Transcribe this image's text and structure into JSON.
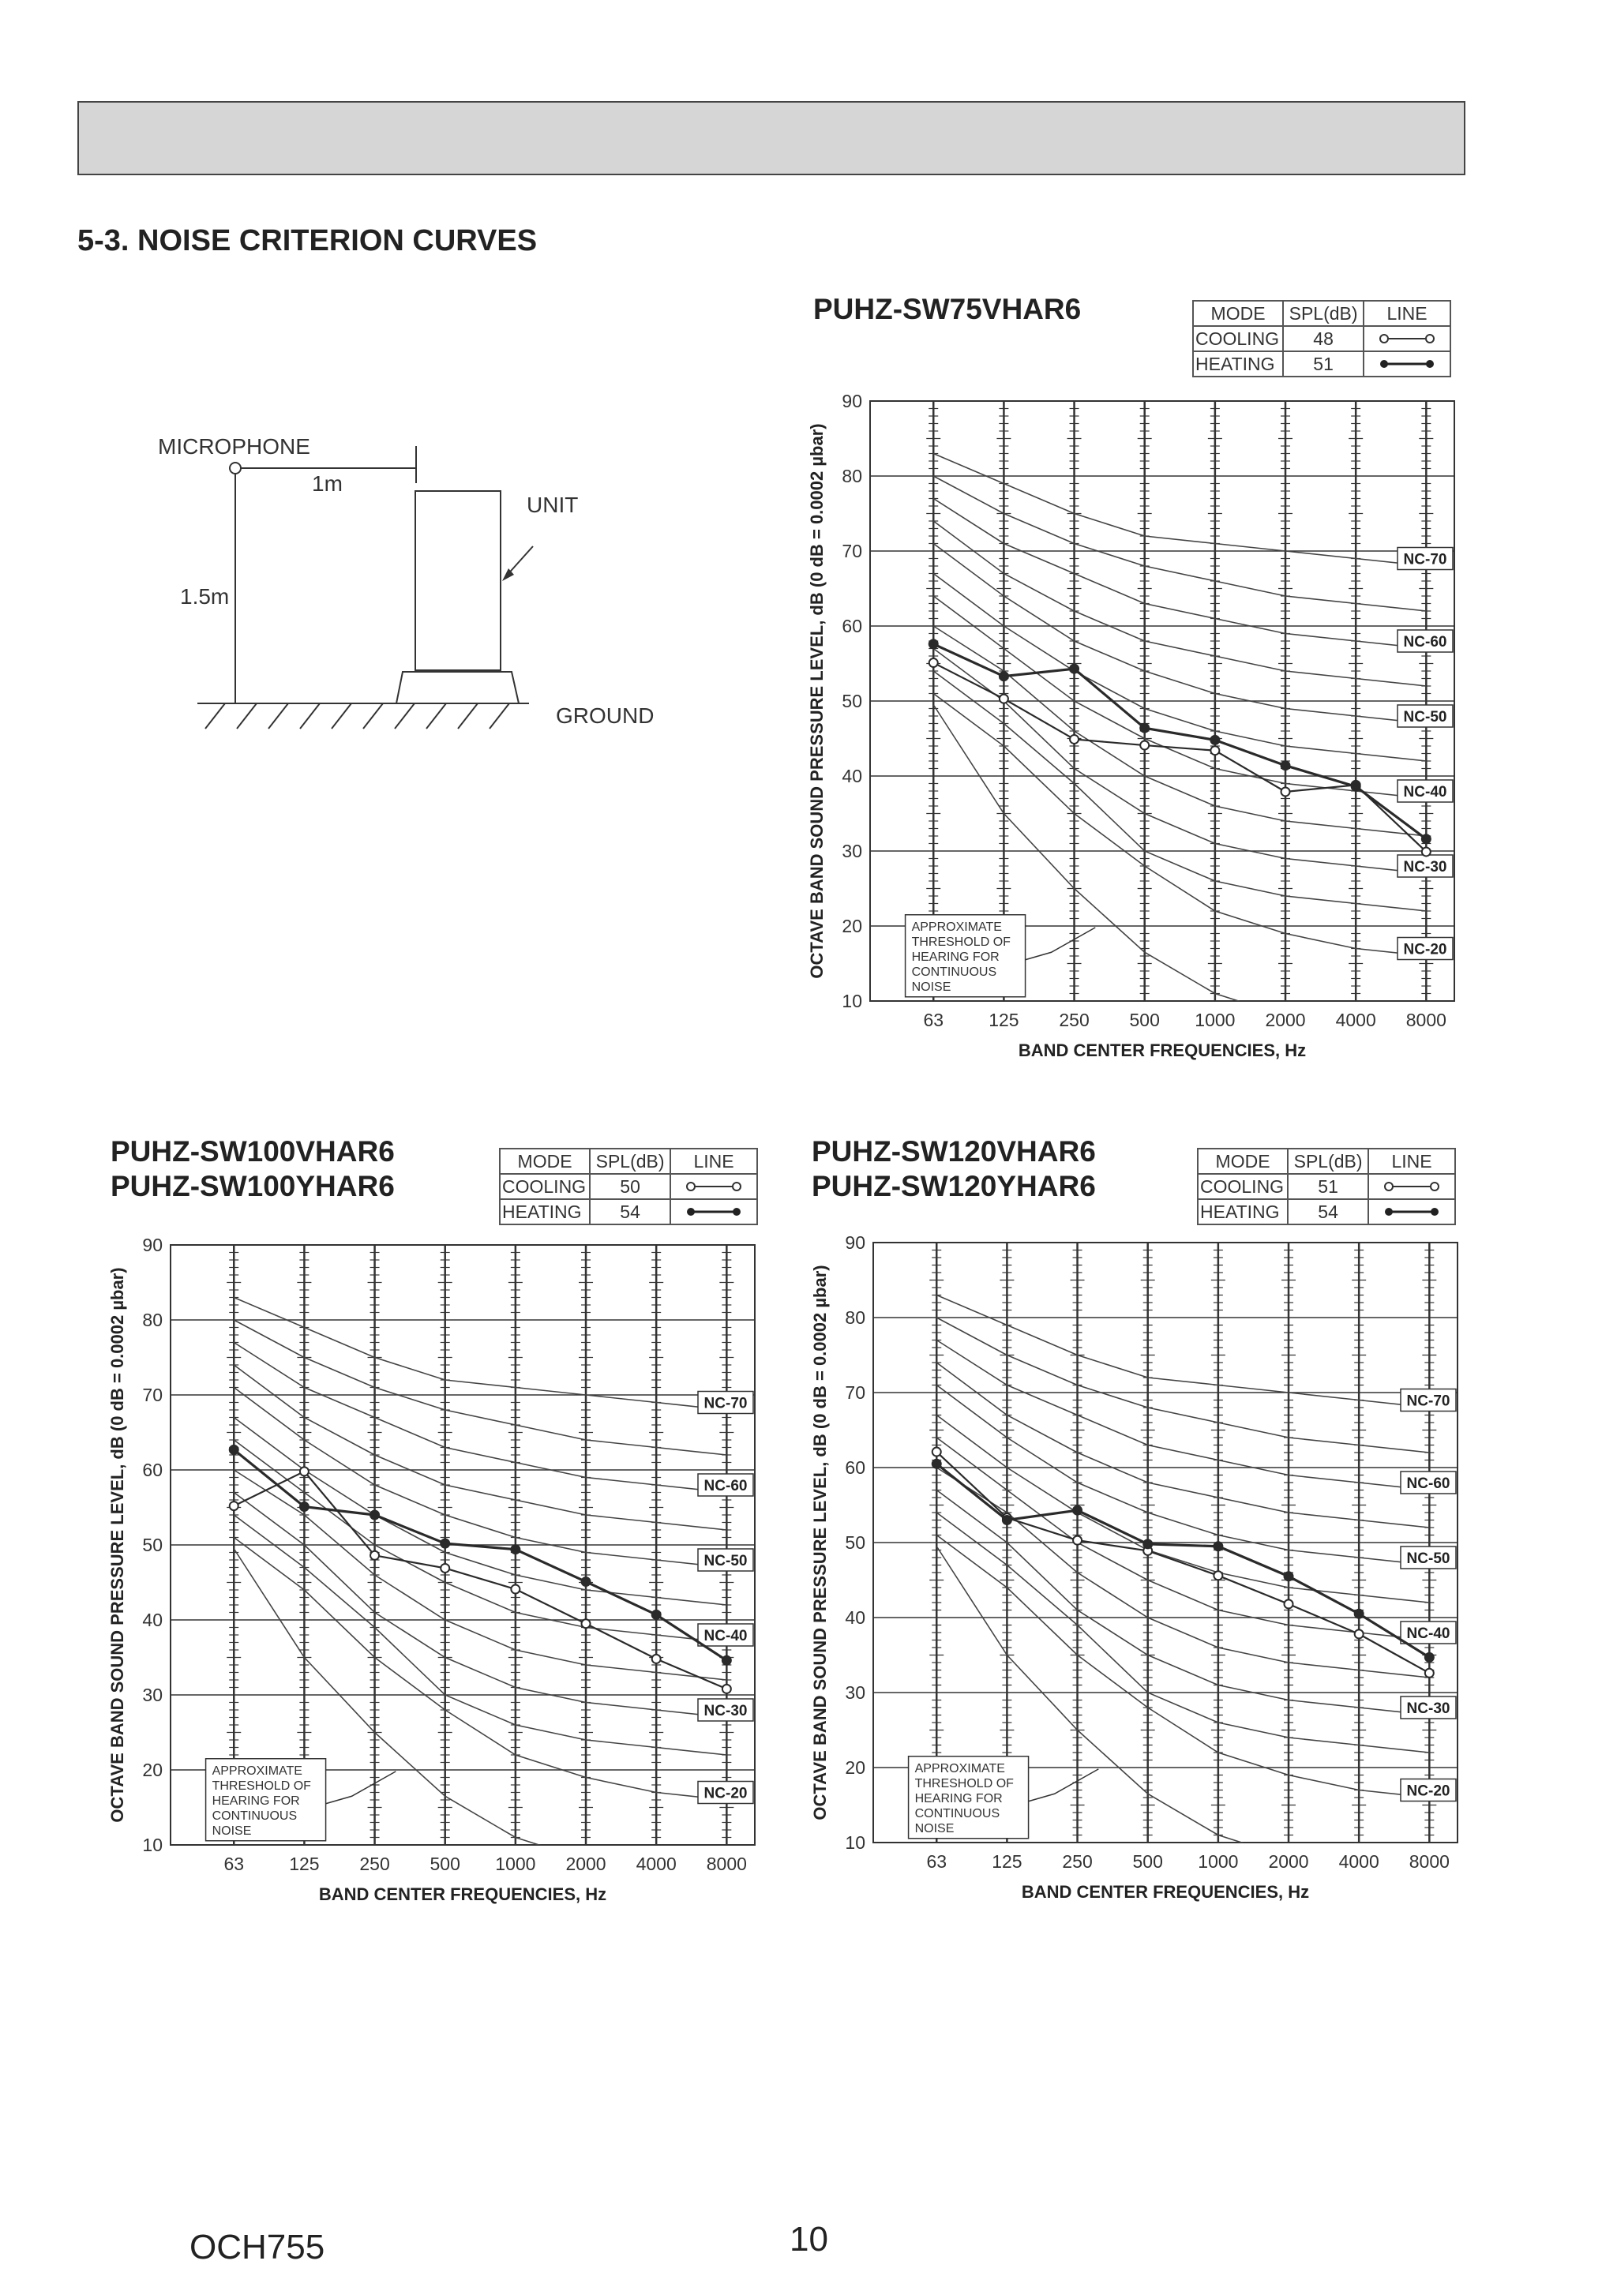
{
  "section": {
    "title": "5-3. NOISE CRITERION CURVES"
  },
  "setup": {
    "microphone_label": "MICROPHONE",
    "distance_label": "1m",
    "height_label": "1.5m",
    "unit_label": "UNIT",
    "ground_label": "GROUND"
  },
  "legend_headers": {
    "mode": "MODE",
    "spl": "SPL(dB)",
    "line": "LINE"
  },
  "footer": {
    "document_code": "OCH755",
    "page_number": "10"
  },
  "colors": {
    "series": "#2a2a2a",
    "grid": "#333333",
    "curves": "#444444",
    "header_band": "#d6d6d6"
  },
  "chart_data": [
    {
      "type": "line",
      "models": [
        "PUHZ-SW75VHAR6"
      ],
      "legend": [
        {
          "mode": "COOLING",
          "spl": "48",
          "marker": "open-circle"
        },
        {
          "mode": "HEATING",
          "spl": "51",
          "marker": "filled-circle"
        }
      ],
      "xlabel": "BAND CENTER FREQUENCIES, Hz",
      "ylabel": "OCTAVE BAND SOUND PRESSURE LEVEL, dB (0 dB = 0.0002 µbar)",
      "categories": [
        "63",
        "125",
        "250",
        "500",
        "1000",
        "2000",
        "4000",
        "8000"
      ],
      "ylim": [
        10,
        90
      ],
      "yticks": [
        10,
        20,
        30,
        40,
        50,
        60,
        70,
        80,
        90
      ],
      "series": [
        {
          "name": "COOLING",
          "marker": "open-circle",
          "values": [
            55.1,
            50.3,
            44.9,
            44.1,
            43.4,
            37.9,
            38.8,
            29.9
          ]
        },
        {
          "name": "HEATING",
          "marker": "filled-circle",
          "values": [
            57.6,
            53.3,
            54.3,
            46.4,
            44.8,
            41.4,
            38.6,
            31.6
          ]
        }
      ],
      "threshold_note": "APPROXIMATE THRESHOLD OF HEARING FOR CONTINUOUS NOISE",
      "nc_labels": [
        "NC-70",
        "NC-60",
        "NC-50",
        "NC-40",
        "NC-30",
        "NC-20"
      ]
    },
    {
      "type": "line",
      "models": [
        "PUHZ-SW100VHAR6",
        "PUHZ-SW100YHAR6"
      ],
      "legend": [
        {
          "mode": "COOLING",
          "spl": "50",
          "marker": "open-circle"
        },
        {
          "mode": "HEATING",
          "spl": "54",
          "marker": "filled-circle"
        }
      ],
      "xlabel": "BAND CENTER FREQUENCIES, Hz",
      "ylabel": "OCTAVE BAND SOUND PRESSURE LEVEL, dB (0 dB = 0.0002 µbar)",
      "categories": [
        "63",
        "125",
        "250",
        "500",
        "1000",
        "2000",
        "4000",
        "8000"
      ],
      "ylim": [
        10,
        90
      ],
      "yticks": [
        10,
        20,
        30,
        40,
        50,
        60,
        70,
        80,
        90
      ],
      "series": [
        {
          "name": "COOLING",
          "marker": "open-circle",
          "values": [
            55.2,
            59.8,
            48.6,
            46.9,
            44.1,
            39.5,
            34.8,
            30.8
          ]
        },
        {
          "name": "HEATING",
          "marker": "filled-circle",
          "values": [
            62.7,
            55.1,
            54.0,
            50.2,
            49.4,
            45.1,
            40.7,
            34.6
          ]
        }
      ],
      "threshold_note": "APPROXIMATE THRESHOLD OF HEARING FOR CONTINUOUS NOISE",
      "nc_labels": [
        "NC-70",
        "NC-60",
        "NC-50",
        "NC-40",
        "NC-30",
        "NC-20"
      ]
    },
    {
      "type": "line",
      "models": [
        "PUHZ-SW120VHAR6",
        "PUHZ-SW120YHAR6"
      ],
      "legend": [
        {
          "mode": "COOLING",
          "spl": "51",
          "marker": "open-circle"
        },
        {
          "mode": "HEATING",
          "spl": "54",
          "marker": "filled-circle"
        }
      ],
      "xlabel": "BAND CENTER FREQUENCIES, Hz",
      "ylabel": "OCTAVE BAND SOUND PRESSURE LEVEL, dB (0 dB = 0.0002 µbar)",
      "categories": [
        "63",
        "125",
        "250",
        "500",
        "1000",
        "2000",
        "4000",
        "8000"
      ],
      "ylim": [
        10,
        90
      ],
      "yticks": [
        10,
        20,
        30,
        40,
        50,
        60,
        70,
        80,
        90
      ],
      "series": [
        {
          "name": "COOLING",
          "marker": "open-circle",
          "values": [
            62.1,
            53.3,
            50.3,
            48.9,
            45.6,
            41.8,
            37.8,
            32.6
          ]
        },
        {
          "name": "HEATING",
          "marker": "filled-circle",
          "values": [
            60.5,
            53.0,
            54.3,
            49.8,
            49.5,
            45.5,
            40.5,
            34.7
          ]
        }
      ],
      "threshold_note": "APPROXIMATE THRESHOLD OF HEARING FOR CONTINUOUS NOISE",
      "nc_labels": [
        "NC-70",
        "NC-60",
        "NC-50",
        "NC-40",
        "NC-30",
        "NC-20"
      ]
    }
  ]
}
